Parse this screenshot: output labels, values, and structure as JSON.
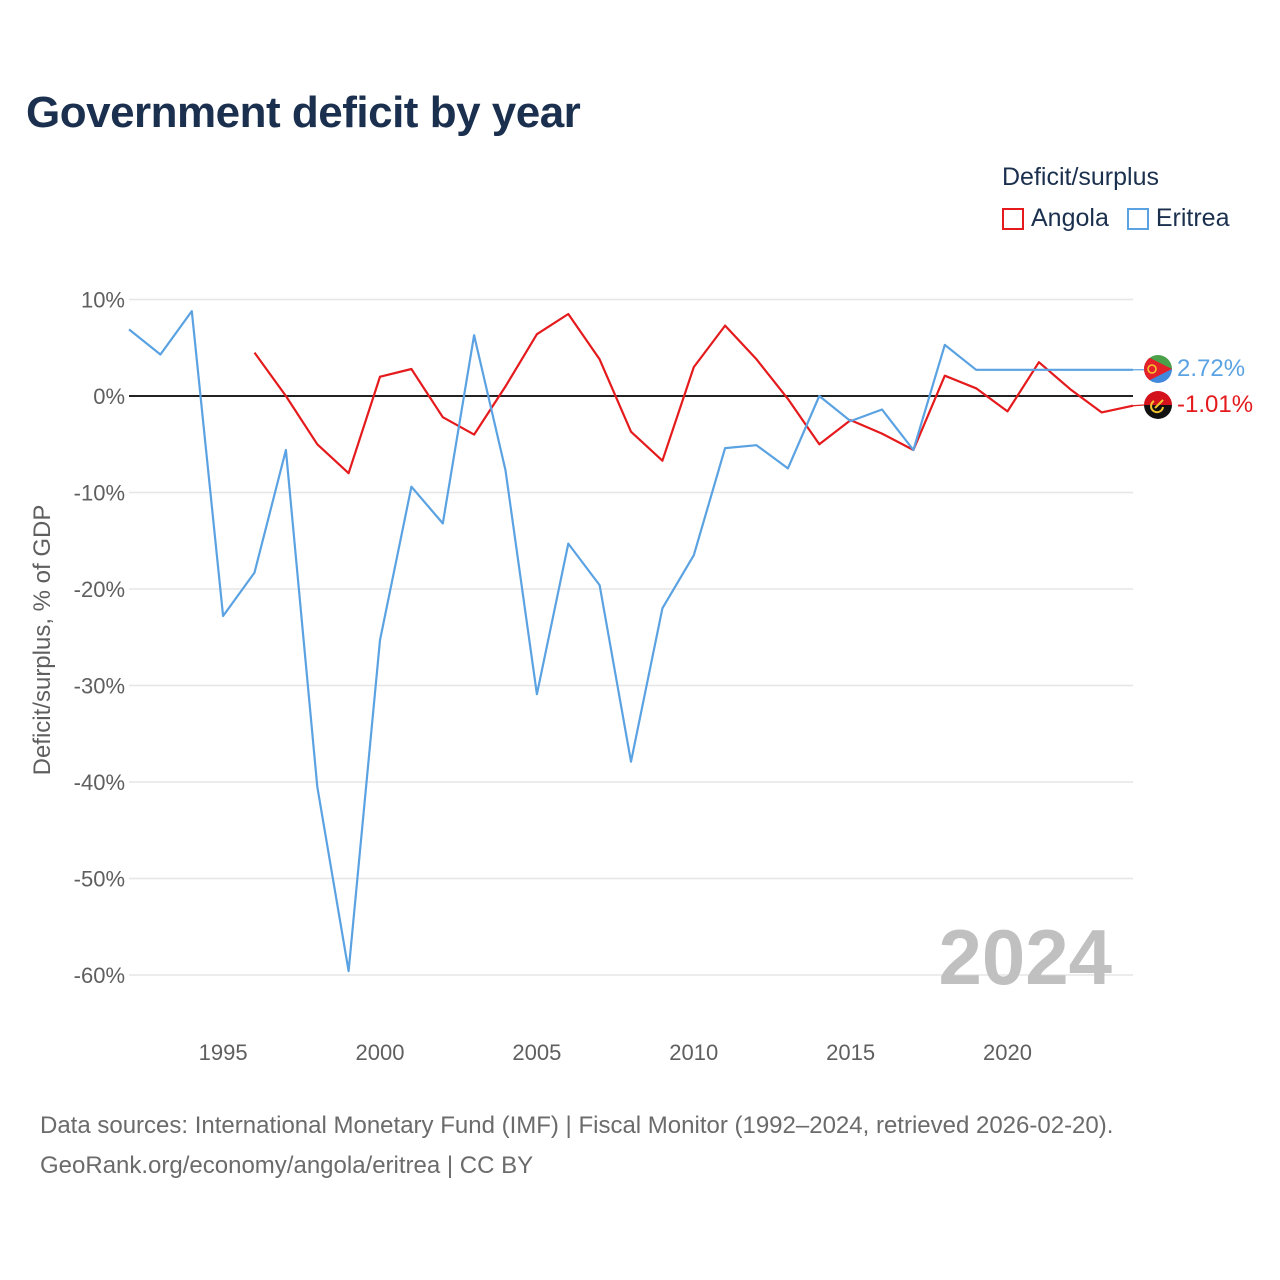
{
  "title": "Government deficit by year",
  "legend": {
    "title": "Deficit/surplus",
    "items": [
      {
        "label": "Angola",
        "color": "#e41a1c"
      },
      {
        "label": "Eritrea",
        "color": "#5aa2e2"
      }
    ]
  },
  "chart_data": {
    "type": "line",
    "ylabel": "Deficit/surplus, % of GDP",
    "xlim": [
      1992,
      2024
    ],
    "ylim": [
      -65,
      10
    ],
    "x_ticks": [
      1995,
      2000,
      2005,
      2010,
      2015,
      2020
    ],
    "x_tick_labels": [
      "1995",
      "2000",
      "2005",
      "2010",
      "2015",
      "2020"
    ],
    "y_ticks": [
      10,
      0,
      -10,
      -20,
      -30,
      -40,
      -50,
      -60
    ],
    "y_tick_labels": [
      "10%",
      "0%",
      "-10%",
      "-20%",
      "-30%",
      "-40%",
      "-50%",
      "-60%"
    ],
    "year_label": "2024",
    "series": [
      {
        "name": "Angola",
        "color": "#e41a1c",
        "end_label": "-1.01%",
        "points": [
          [
            1996,
            4.5
          ],
          [
            1997,
            0
          ],
          [
            1998,
            -5
          ],
          [
            1999,
            -8
          ],
          [
            2000,
            2
          ],
          [
            2001,
            2.8
          ],
          [
            2002,
            -2.2
          ],
          [
            2003,
            -4
          ],
          [
            2004,
            1
          ],
          [
            2005,
            6.4
          ],
          [
            2006,
            8.5
          ],
          [
            2007,
            3.8
          ],
          [
            2008,
            -3.7
          ],
          [
            2009,
            -6.7
          ],
          [
            2010,
            3
          ],
          [
            2011,
            7.3
          ],
          [
            2012,
            3.8
          ],
          [
            2013,
            -0.3
          ],
          [
            2014,
            -5
          ],
          [
            2015,
            -2.5
          ],
          [
            2016,
            -3.9
          ],
          [
            2017,
            -5.6
          ],
          [
            2018,
            2.1
          ],
          [
            2019,
            0.8
          ],
          [
            2020,
            -1.6
          ],
          [
            2021,
            3.5
          ],
          [
            2022,
            0.7
          ],
          [
            2023,
            -1.7
          ],
          [
            2024,
            -1.01
          ]
        ]
      },
      {
        "name": "Eritrea",
        "color": "#5aa2e2",
        "end_label": "2.72%",
        "points": [
          [
            1992,
            6.9
          ],
          [
            1993,
            4.3
          ],
          [
            1994,
            8.8
          ],
          [
            1995,
            -22.8
          ],
          [
            1996,
            -18.3
          ],
          [
            1997,
            -5.6
          ],
          [
            1998,
            -40.5
          ],
          [
            1999,
            -59.6
          ],
          [
            2000,
            -25.3
          ],
          [
            2001,
            -9.4
          ],
          [
            2002,
            -13.2
          ],
          [
            2003,
            6.3
          ],
          [
            2004,
            -7.7
          ],
          [
            2005,
            -30.9
          ],
          [
            2006,
            -15.3
          ],
          [
            2007,
            -19.6
          ],
          [
            2008,
            -37.9
          ],
          [
            2009,
            -22
          ],
          [
            2010,
            -16.5
          ],
          [
            2011,
            -5.4
          ],
          [
            2012,
            -5.1
          ],
          [
            2013,
            -7.5
          ],
          [
            2014,
            0
          ],
          [
            2015,
            -2.6
          ],
          [
            2016,
            -1.4
          ],
          [
            2017,
            -5.6
          ],
          [
            2018,
            5.3
          ],
          [
            2019,
            2.72
          ],
          [
            2024,
            2.72
          ]
        ]
      }
    ]
  },
  "footer": {
    "line1": "Data sources: International Monetary Fund (IMF) | Fiscal Monitor (1992–2024, retrieved 2026-02-20).",
    "line2": "GeoRank.org/economy/angola/eritrea | CC BY"
  }
}
